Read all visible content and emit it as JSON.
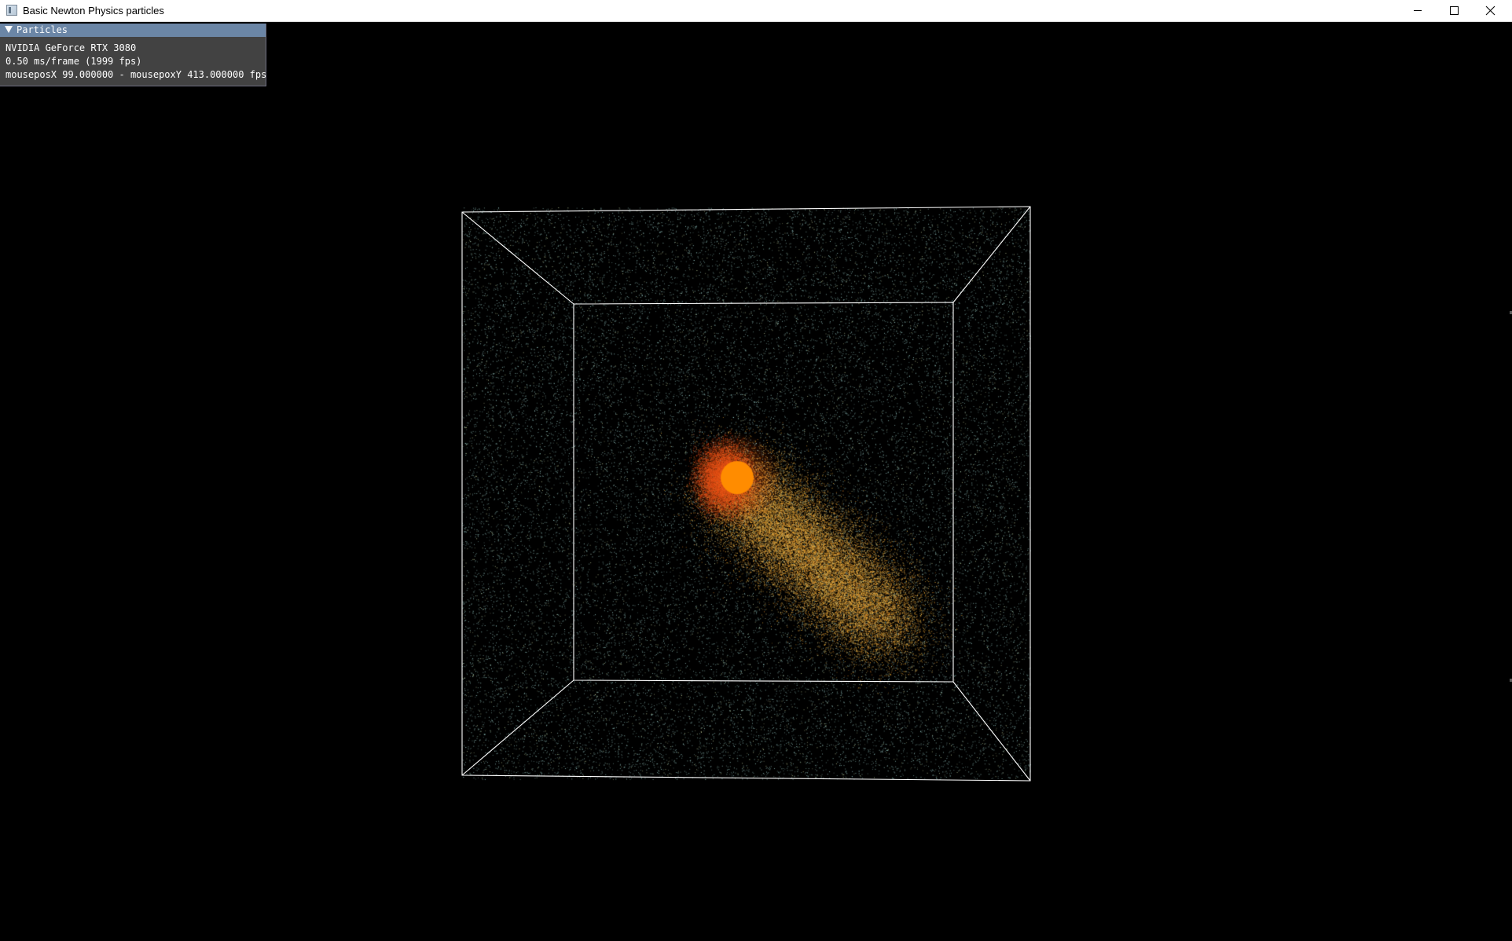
{
  "window": {
    "title": "Basic Newton Physics particles",
    "icons": {
      "app": "application-icon",
      "minimize": "minimize-icon",
      "maximize": "maximize-icon",
      "close": "close-icon"
    }
  },
  "panel": {
    "title": "Particles",
    "expanded": true,
    "gpu": "NVIDIA GeForce RTX 3080",
    "frame_time": "0.50 ms/frame (1999 fps)",
    "mouse_pos": "mouseposX 99.000000 - mousepoxY 413.000000 fps",
    "header_color": "#6b86a6"
  },
  "scene": {
    "description_colors": {
      "cool_particle": "#9fd3cf",
      "warm_particle": "#f2b13a",
      "hot_particle": "#e8521c",
      "attractor": "#ff8c00",
      "bounding_box": "#ffffff"
    }
  }
}
